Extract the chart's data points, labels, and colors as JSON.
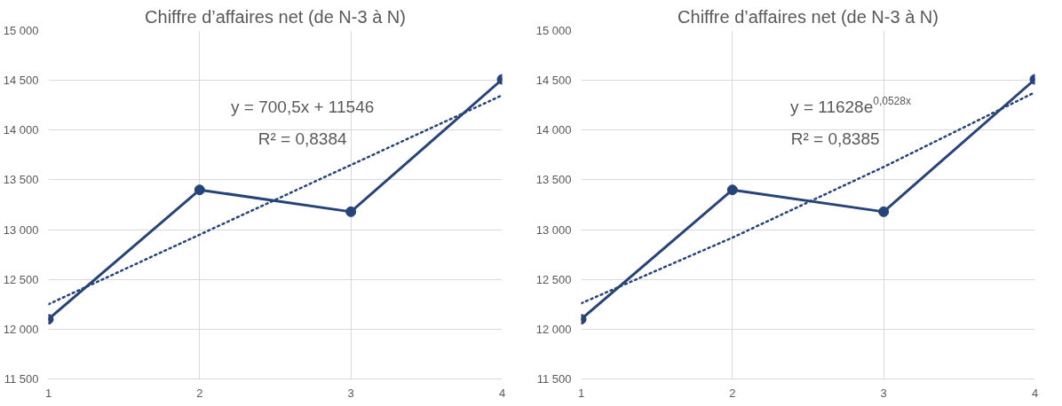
{
  "chart_data": [
    {
      "type": "line",
      "title": "Chiffre d’affaires net (de N-3 à N)",
      "x": [
        1,
        2,
        3,
        4
      ],
      "series": [
        {
          "color": "#264478",
          "marker": "circle",
          "line_style": "solid",
          "values": [
            12100,
            13400,
            13180,
            14510
          ]
        },
        {
          "color": "#264478",
          "marker": "none",
          "line_style": "dotted",
          "x": [
            1,
            4
          ],
          "values": [
            12250,
            14350
          ]
        }
      ],
      "annotations": [
        "y = 700,5x + 11546",
        "R² = 0,8384"
      ],
      "xlim": [
        1,
        4
      ],
      "xticks": [
        1,
        2,
        3,
        4
      ],
      "ylim": [
        11500,
        15000
      ],
      "yticks": [
        {
          "value": 11500,
          "label": "11 500"
        },
        {
          "value": 12000,
          "label": "12 000"
        },
        {
          "value": 12500,
          "label": "12 500"
        },
        {
          "value": 13000,
          "label": "13 000"
        },
        {
          "value": 13500,
          "label": "13 500"
        },
        {
          "value": 14000,
          "label": "14 000"
        },
        {
          "value": 14500,
          "label": "14 500"
        },
        {
          "value": 15000,
          "label": "15 000"
        }
      ],
      "grid": true
    },
    {
      "type": "line",
      "title": "Chiffre d’affaires net (de N-3 à N)",
      "x": [
        1,
        2,
        3,
        4
      ],
      "series": [
        {
          "color": "#264478",
          "marker": "circle",
          "line_style": "solid",
          "values": [
            12100,
            13400,
            13180,
            14510
          ]
        },
        {
          "color": "#264478",
          "marker": "none",
          "line_style": "dotted",
          "x": [
            1,
            2,
            3,
            4
          ],
          "values": [
            12260,
            12920,
            13630,
            14380
          ]
        }
      ],
      "annotations": [
        "y = 11628e$^{0,0528x}$",
        "R² = 0,8385"
      ],
      "xlim": [
        1,
        4
      ],
      "xticks": [
        1,
        2,
        3,
        4
      ],
      "ylim": [
        11500,
        15000
      ],
      "yticks": [
        {
          "value": 11500,
          "label": "11 500"
        },
        {
          "value": 12000,
          "label": "12 000"
        },
        {
          "value": 12500,
          "label": "12 500"
        },
        {
          "value": 13000,
          "label": "13 000"
        },
        {
          "value": 13500,
          "label": "13 500"
        },
        {
          "value": 14000,
          "label": "14 000"
        },
        {
          "value": 14500,
          "label": "14 500"
        },
        {
          "value": 15000,
          "label": "15 000"
        }
      ],
      "grid": true
    }
  ]
}
